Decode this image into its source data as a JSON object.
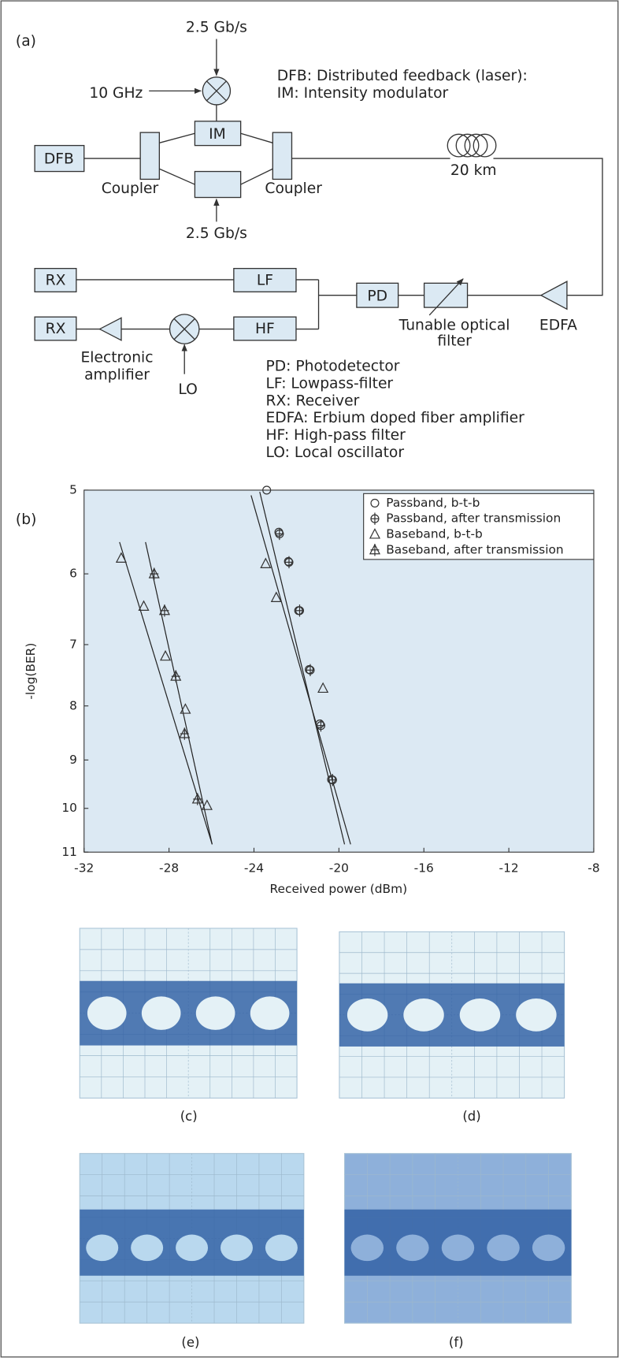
{
  "diagram": {
    "panel_label": "(a)",
    "top_data": "2.5 Gb/s",
    "clock": "10 GHz",
    "bottom_data": "2.5 Gb/s",
    "legend_top": [
      "DFB: Distributed feedback (laser):",
      "IM: Intensity modulator"
    ],
    "blocks": {
      "dfb": "DFB",
      "im": "IM",
      "coupler_left": "Coupler",
      "coupler_right": "Coupler",
      "fiber": "20 km",
      "edfa": "EDFA",
      "filter": [
        "Tunable optical",
        "filter"
      ],
      "pd": "PD",
      "lf": "LF",
      "hf": "HF",
      "rx_top": "RX",
      "rx_bottom": "RX",
      "amp": [
        "Electronic",
        "amplifier"
      ],
      "lo": "LO"
    },
    "legend_bottom": [
      "PD: Photodetector",
      "LF: Lowpass-filter",
      "RX: Receiver",
      "EDFA: Erbium doped fiber amplifier",
      "HF: High-pass filter",
      "LO: Local oscillator"
    ]
  },
  "chart_data": {
    "type": "scatter",
    "panel_label": "(b)",
    "xlabel": "Received power (dBm)",
    "ylabel": "-log(BER)",
    "xlim": [
      -32,
      -8
    ],
    "xticks": [
      -32,
      -28,
      -24,
      -20,
      -16,
      -12,
      -8
    ],
    "ylim": [
      11,
      5
    ],
    "yticks": [
      5,
      6,
      7,
      8,
      9,
      10,
      11
    ],
    "yscale": "log",
    "legend": "upper right",
    "series": [
      {
        "name": "Passband, b-t-b",
        "marker": "circle",
        "color": "#333333",
        "x": [
          -23.4,
          -22.83,
          -22.38,
          -21.9,
          -21.4,
          -20.9,
          -20.35
        ],
        "values": [
          5.0,
          5.48,
          5.84,
          6.5,
          7.39,
          8.32,
          9.39
        ]
      },
      {
        "name": "Passband, after transmission",
        "marker": "circle-cross",
        "color": "#333333",
        "x": [
          -22.8,
          -22.35,
          -21.85,
          -21.35,
          -20.85,
          -20.3
        ],
        "values": [
          5.5,
          5.85,
          6.5,
          7.4,
          8.35,
          9.4
        ]
      },
      {
        "name": "Baseband, b-t-b",
        "marker": "triangle",
        "color": "#333333",
        "x": [
          -30.25,
          -29.19,
          -28.17,
          -27.23,
          -26.21,
          -23.45,
          -22.95,
          -20.75
        ],
        "values": [
          5.8,
          6.44,
          7.18,
          8.06,
          9.94,
          5.87,
          6.32,
          7.7
        ]
      },
      {
        "name": "Baseband, after transmission",
        "marker": "triangle-cross",
        "color": "#333333",
        "x": [
          -28.7,
          -28.21,
          -27.68,
          -27.27,
          -26.66
        ],
        "values": [
          6.0,
          6.5,
          7.5,
          8.5,
          9.8
        ]
      }
    ]
  },
  "eye_diagrams": {
    "labels": [
      "(c)",
      "(d)",
      "(e)",
      "(f)"
    ]
  }
}
